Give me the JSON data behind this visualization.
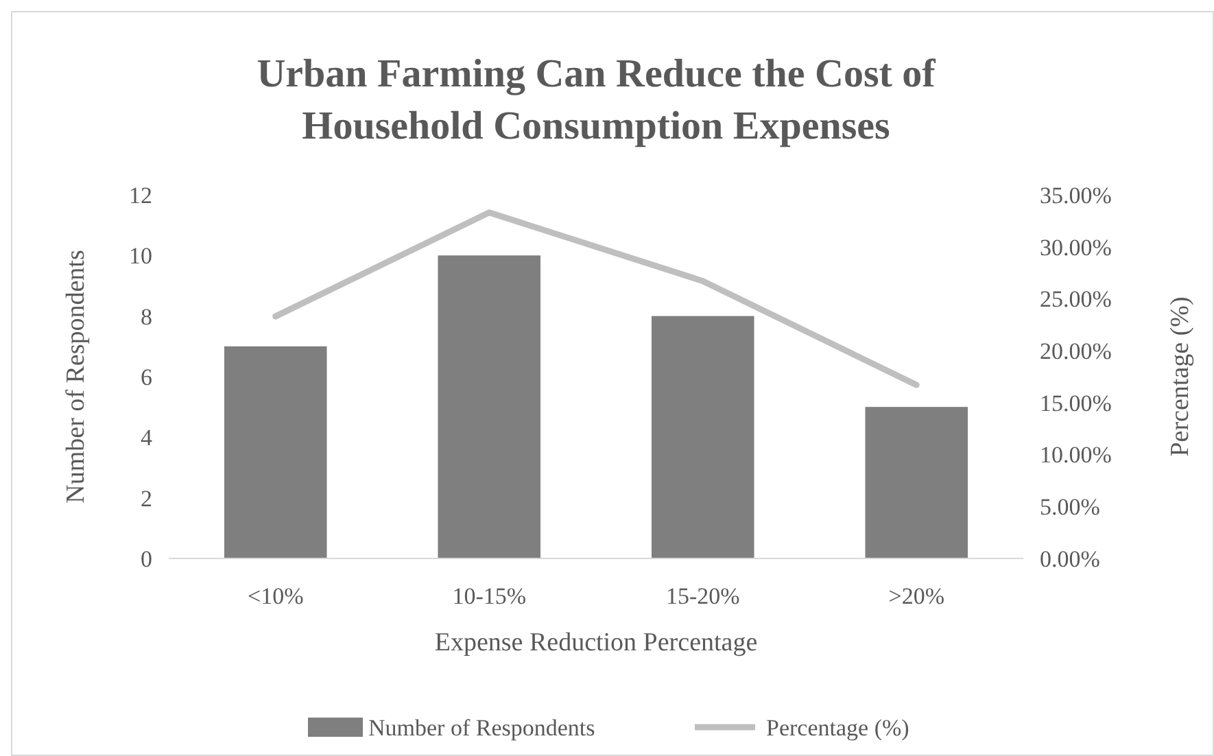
{
  "chart_data": {
    "type": "bar",
    "title": "Urban Farming Can Reduce the Cost of Household Consumption Expenses",
    "xlabel": "Expense Reduction Percentage",
    "ylabel": "Number of Respondents",
    "y2label": "Percentage (%)",
    "categories": [
      "<10%",
      "10-15%",
      "15-20%",
      ">20%"
    ],
    "series": [
      {
        "name": "Number of Respondents",
        "color": "#7f7f7f",
        "values": [
          7,
          10,
          8,
          5
        ]
      },
      {
        "name": "Percentage (%)",
        "type": "line",
        "axis": "y2",
        "color": "#bfbfbf",
        "values": [
          23.3,
          33.3,
          26.7,
          16.7
        ]
      }
    ],
    "ylim": [
      0,
      12
    ],
    "yticks": [
      0,
      2,
      4,
      6,
      8,
      10,
      12
    ],
    "y2lim": [
      0,
      35
    ],
    "y2ticks": [
      {
        "value": 0,
        "label": "0.00%"
      },
      {
        "value": 5,
        "label": "5.00%"
      },
      {
        "value": 10,
        "label": "10.00%"
      },
      {
        "value": 15,
        "label": "15.00%"
      },
      {
        "value": 20,
        "label": "20.00%"
      },
      {
        "value": 25,
        "label": "25.00%"
      },
      {
        "value": 30,
        "label": "30.00%"
      },
      {
        "value": 35,
        "label": "35.00%"
      }
    ],
    "legend": "bottom",
    "marker": "none",
    "line_style": "solid"
  }
}
